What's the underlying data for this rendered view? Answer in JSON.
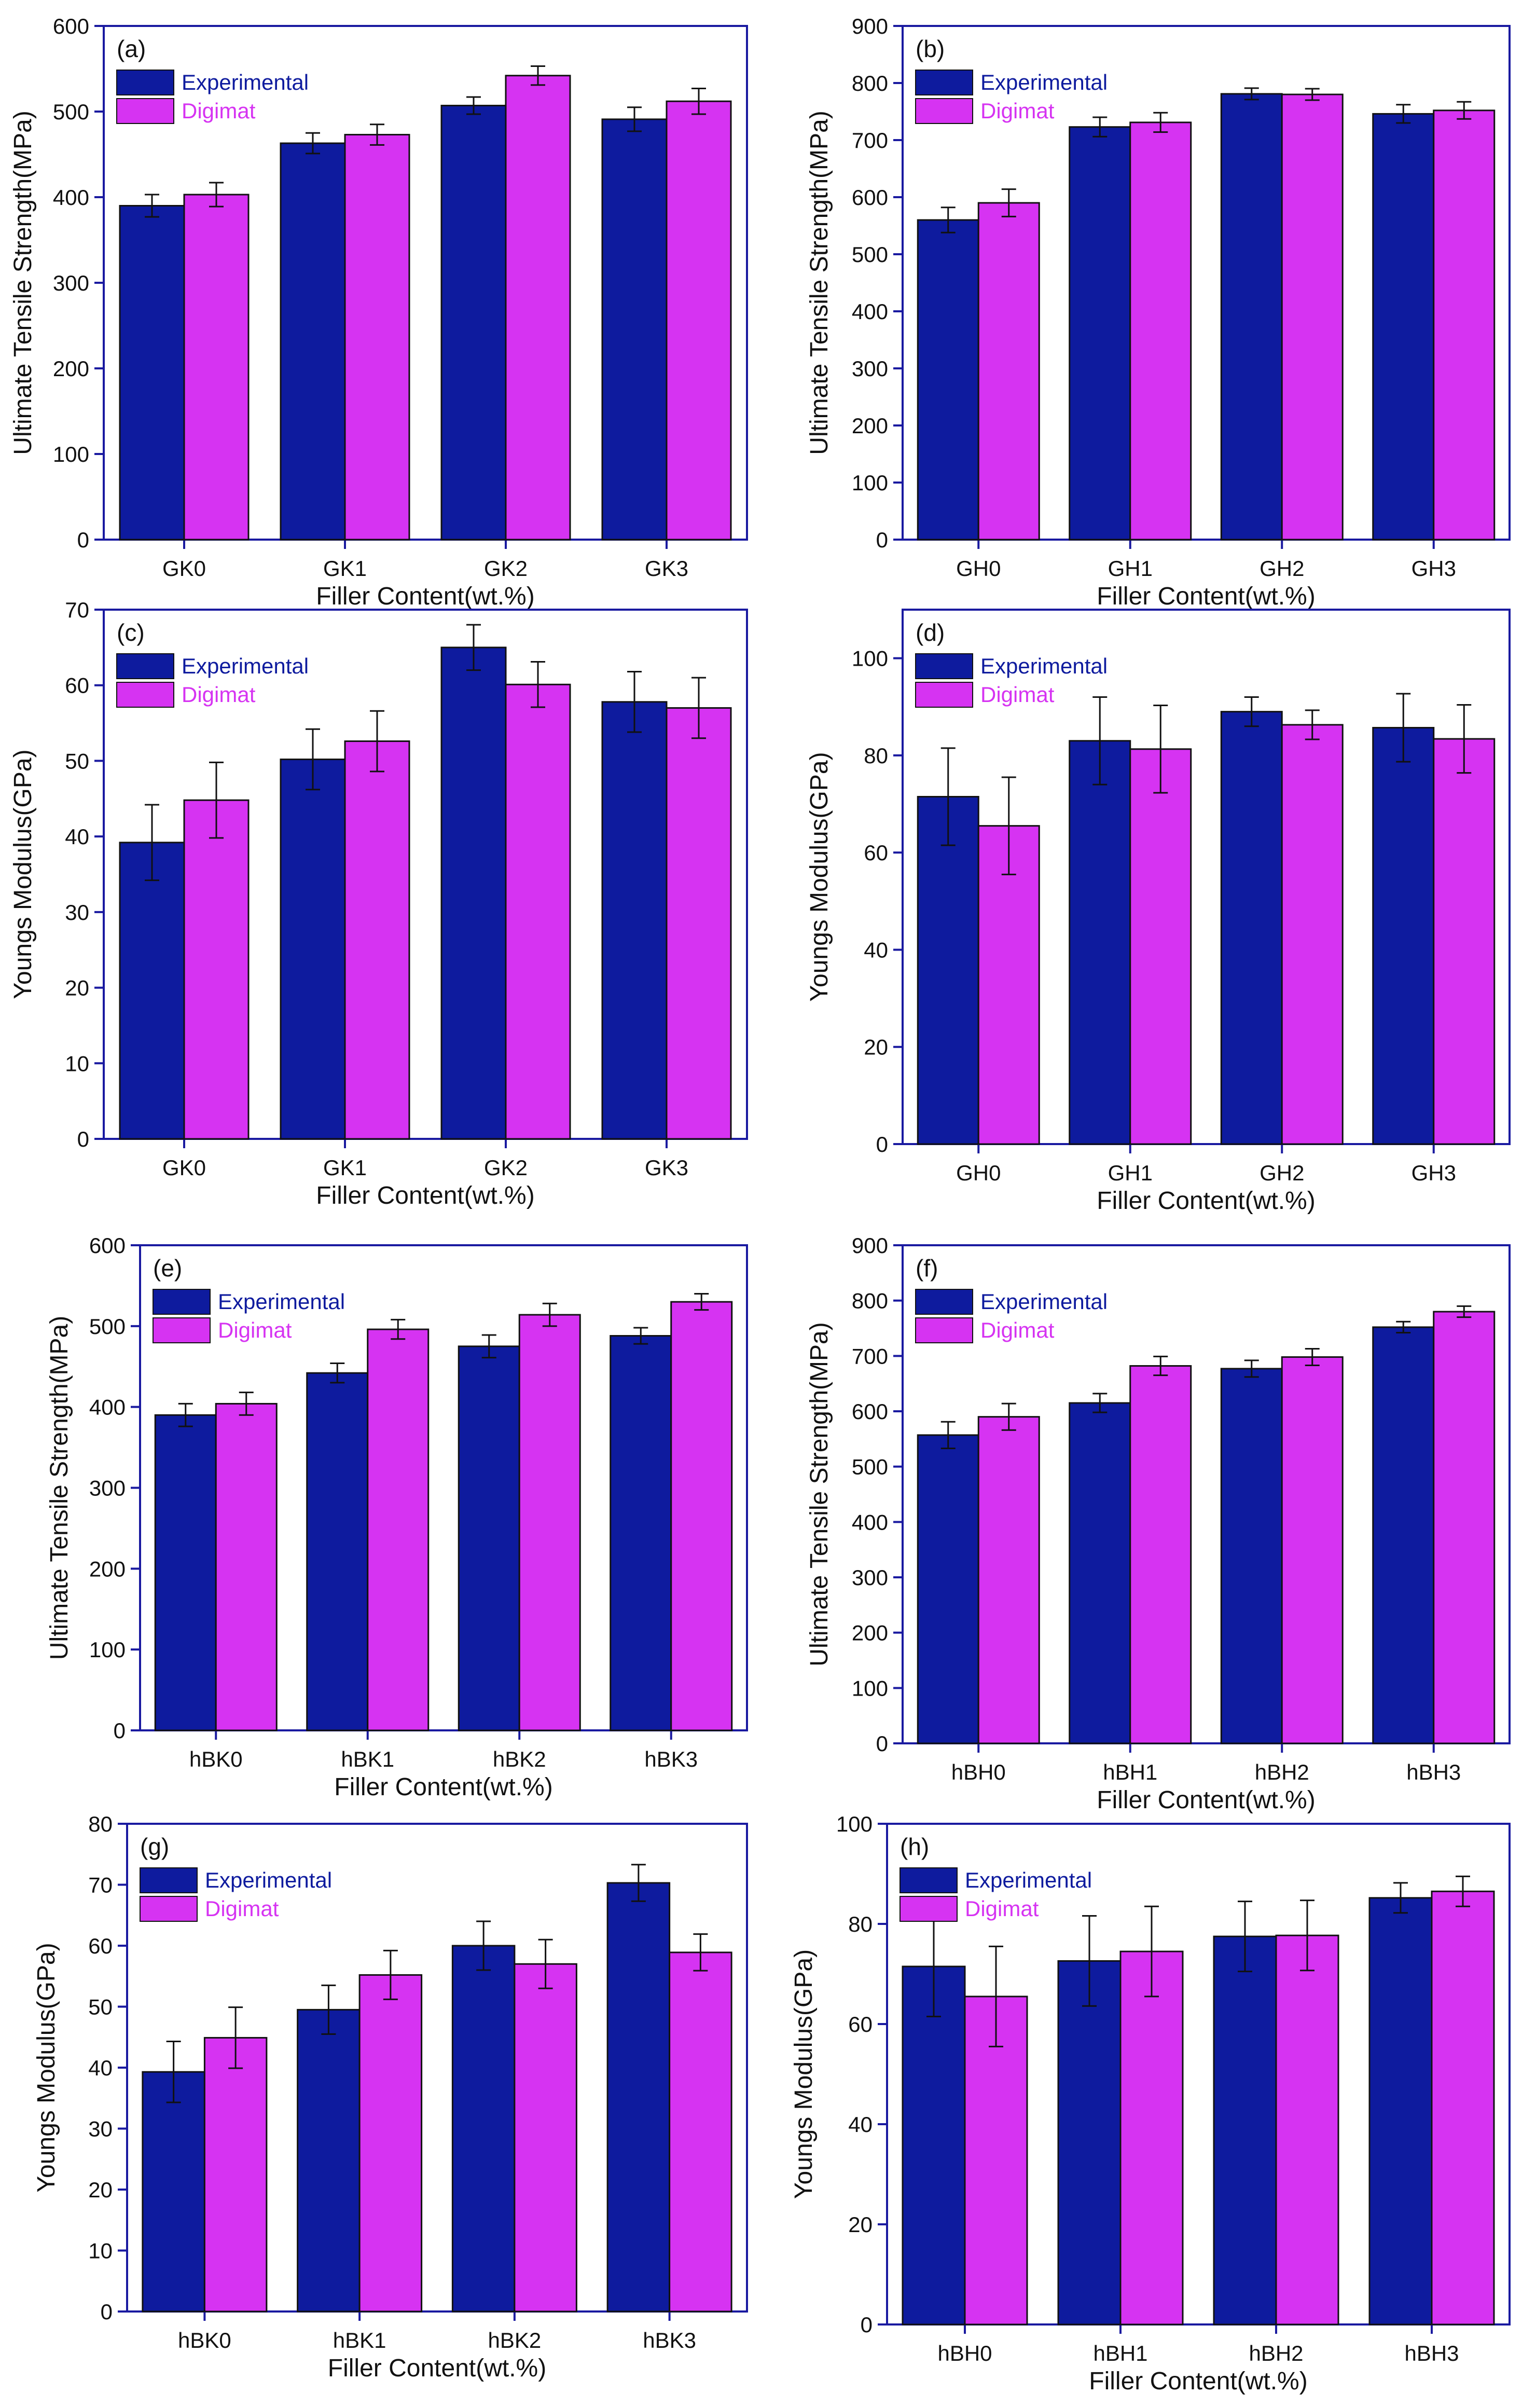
{
  "colors": {
    "experimental": "#0E1B9E",
    "digimat": "#D633F2",
    "axis": "#1A1AA0"
  },
  "chart_data": [
    {
      "panel": "(a)",
      "type": "bar",
      "xlabel": "Filler Content(wt.%)",
      "ylabel": "Ultimate Tensile Strength(MPa)",
      "categories": [
        "GK0",
        "GK1",
        "GK2",
        "GK3"
      ],
      "ylim": [
        0,
        600
      ],
      "yticks": [
        0,
        100,
        200,
        300,
        400,
        500,
        600
      ],
      "legend_position": "top-left",
      "series": [
        {
          "name": "Experimental",
          "values": [
            390,
            463,
            507,
            491
          ],
          "errors": [
            13,
            12,
            10,
            14
          ]
        },
        {
          "name": "Digimat",
          "values": [
            403,
            473,
            542,
            512
          ],
          "errors": [
            14,
            12,
            11,
            15
          ]
        }
      ]
    },
    {
      "panel": "(b)",
      "type": "bar",
      "xlabel": "Filler Content(wt.%)",
      "ylabel": "Ultimate Tensile Strength(MPa)",
      "categories": [
        "GH0",
        "GH1",
        "GH2",
        "GH3"
      ],
      "ylim": [
        0,
        900
      ],
      "yticks": [
        0,
        100,
        200,
        300,
        400,
        500,
        600,
        700,
        800,
        900
      ],
      "legend_position": "top-left",
      "series": [
        {
          "name": "Experimental",
          "values": [
            560,
            723,
            781,
            746
          ],
          "errors": [
            22,
            17,
            10,
            16
          ]
        },
        {
          "name": "Digimat",
          "values": [
            590,
            731,
            780,
            752
          ],
          "errors": [
            24,
            17,
            10,
            15
          ]
        }
      ]
    },
    {
      "panel": "(c)",
      "type": "bar",
      "xlabel": "Filler Content(wt.%)",
      "ylabel": "Youngs Modulus(GPa)",
      "categories": [
        "GK0",
        "GK1",
        "GK2",
        "GK3"
      ],
      "ylim": [
        0,
        70
      ],
      "yticks": [
        0,
        10,
        20,
        30,
        40,
        50,
        60,
        70
      ],
      "legend_position": "top-left",
      "series": [
        {
          "name": "Experimental",
          "values": [
            39.2,
            50.2,
            65,
            57.8
          ],
          "errors": [
            5,
            4,
            3,
            4
          ]
        },
        {
          "name": "Digimat",
          "values": [
            44.8,
            52.6,
            60.1,
            57
          ],
          "errors": [
            5,
            4,
            3,
            4
          ]
        }
      ]
    },
    {
      "panel": "(d)",
      "type": "bar",
      "xlabel": "Filler Content(wt.%)",
      "ylabel": "Youngs Modulus(GPa)",
      "categories": [
        "GH0",
        "GH1",
        "GH2",
        "GH3"
      ],
      "ylim": [
        0,
        110
      ],
      "yticks": [
        0,
        20,
        40,
        60,
        80,
        100
      ],
      "legend_position": "top-left",
      "series": [
        {
          "name": "Experimental",
          "values": [
            71.5,
            83,
            89,
            85.7
          ],
          "errors": [
            10,
            9,
            3,
            7
          ]
        },
        {
          "name": "Digimat",
          "values": [
            65.5,
            81.3,
            86.3,
            83.4
          ],
          "errors": [
            10,
            9,
            3,
            7
          ]
        }
      ]
    },
    {
      "panel": "(e)",
      "type": "bar",
      "xlabel": "Filler Content(wt.%)",
      "ylabel": "Ultimate Tensile Strength(MPa)",
      "categories": [
        "hBK0",
        "hBK1",
        "hBK2",
        "hBK3"
      ],
      "ylim": [
        0,
        600
      ],
      "yticks": [
        0,
        100,
        200,
        300,
        400,
        500,
        600
      ],
      "legend_position": "top-left",
      "series": [
        {
          "name": "Experimental",
          "values": [
            390,
            442,
            475,
            488
          ],
          "errors": [
            14,
            12,
            14,
            10
          ]
        },
        {
          "name": "Digimat",
          "values": [
            404,
            496,
            514,
            530
          ],
          "errors": [
            14,
            12,
            14,
            10
          ]
        }
      ]
    },
    {
      "panel": "(f)",
      "type": "bar",
      "xlabel": "Filler Content(wt.%)",
      "ylabel": "Ultimate Tensile Strength(MPa)",
      "categories": [
        "hBH0",
        "hBH1",
        "hBH2",
        "hBH3"
      ],
      "ylim": [
        0,
        900
      ],
      "yticks": [
        0,
        100,
        200,
        300,
        400,
        500,
        600,
        700,
        800,
        900
      ],
      "legend_position": "top-left",
      "series": [
        {
          "name": "Experimental",
          "values": [
            557,
            615,
            677,
            752
          ],
          "errors": [
            24,
            17,
            15,
            10
          ]
        },
        {
          "name": "Digimat",
          "values": [
            590,
            682,
            698,
            780
          ],
          "errors": [
            24,
            17,
            15,
            10
          ]
        }
      ]
    },
    {
      "panel": "(g)",
      "type": "bar",
      "xlabel": "Filler Content(wt.%)",
      "ylabel": "Youngs Modulus(GPa)",
      "categories": [
        "hBK0",
        "hBK1",
        "hBK2",
        "hBK3"
      ],
      "ylim": [
        0,
        80
      ],
      "yticks": [
        0,
        10,
        20,
        30,
        40,
        50,
        60,
        70,
        80
      ],
      "legend_position": "top-left",
      "series": [
        {
          "name": "Experimental",
          "values": [
            39.3,
            49.5,
            60,
            70.3
          ],
          "errors": [
            5,
            4,
            4,
            3
          ]
        },
        {
          "name": "Digimat",
          "values": [
            44.9,
            55.2,
            57,
            58.9
          ],
          "errors": [
            5,
            4,
            4,
            3
          ]
        }
      ]
    },
    {
      "panel": "(h)",
      "type": "bar",
      "xlabel": "Filler Content(wt.%)",
      "ylabel": "Youngs Modulus(GPa)",
      "categories": [
        "hBH0",
        "hBH1",
        "hBH2",
        "hBH3"
      ],
      "ylim": [
        0,
        100
      ],
      "yticks": [
        0,
        20,
        40,
        60,
        80,
        100
      ],
      "legend_position": "top-left",
      "series": [
        {
          "name": "Experimental",
          "values": [
            71.5,
            72.6,
            77.5,
            85.2
          ],
          "errors": [
            10,
            9,
            7,
            3
          ]
        },
        {
          "name": "Digimat",
          "values": [
            65.5,
            74.5,
            77.7,
            86.5
          ],
          "errors": [
            10,
            9,
            7,
            3
          ]
        }
      ]
    }
  ]
}
